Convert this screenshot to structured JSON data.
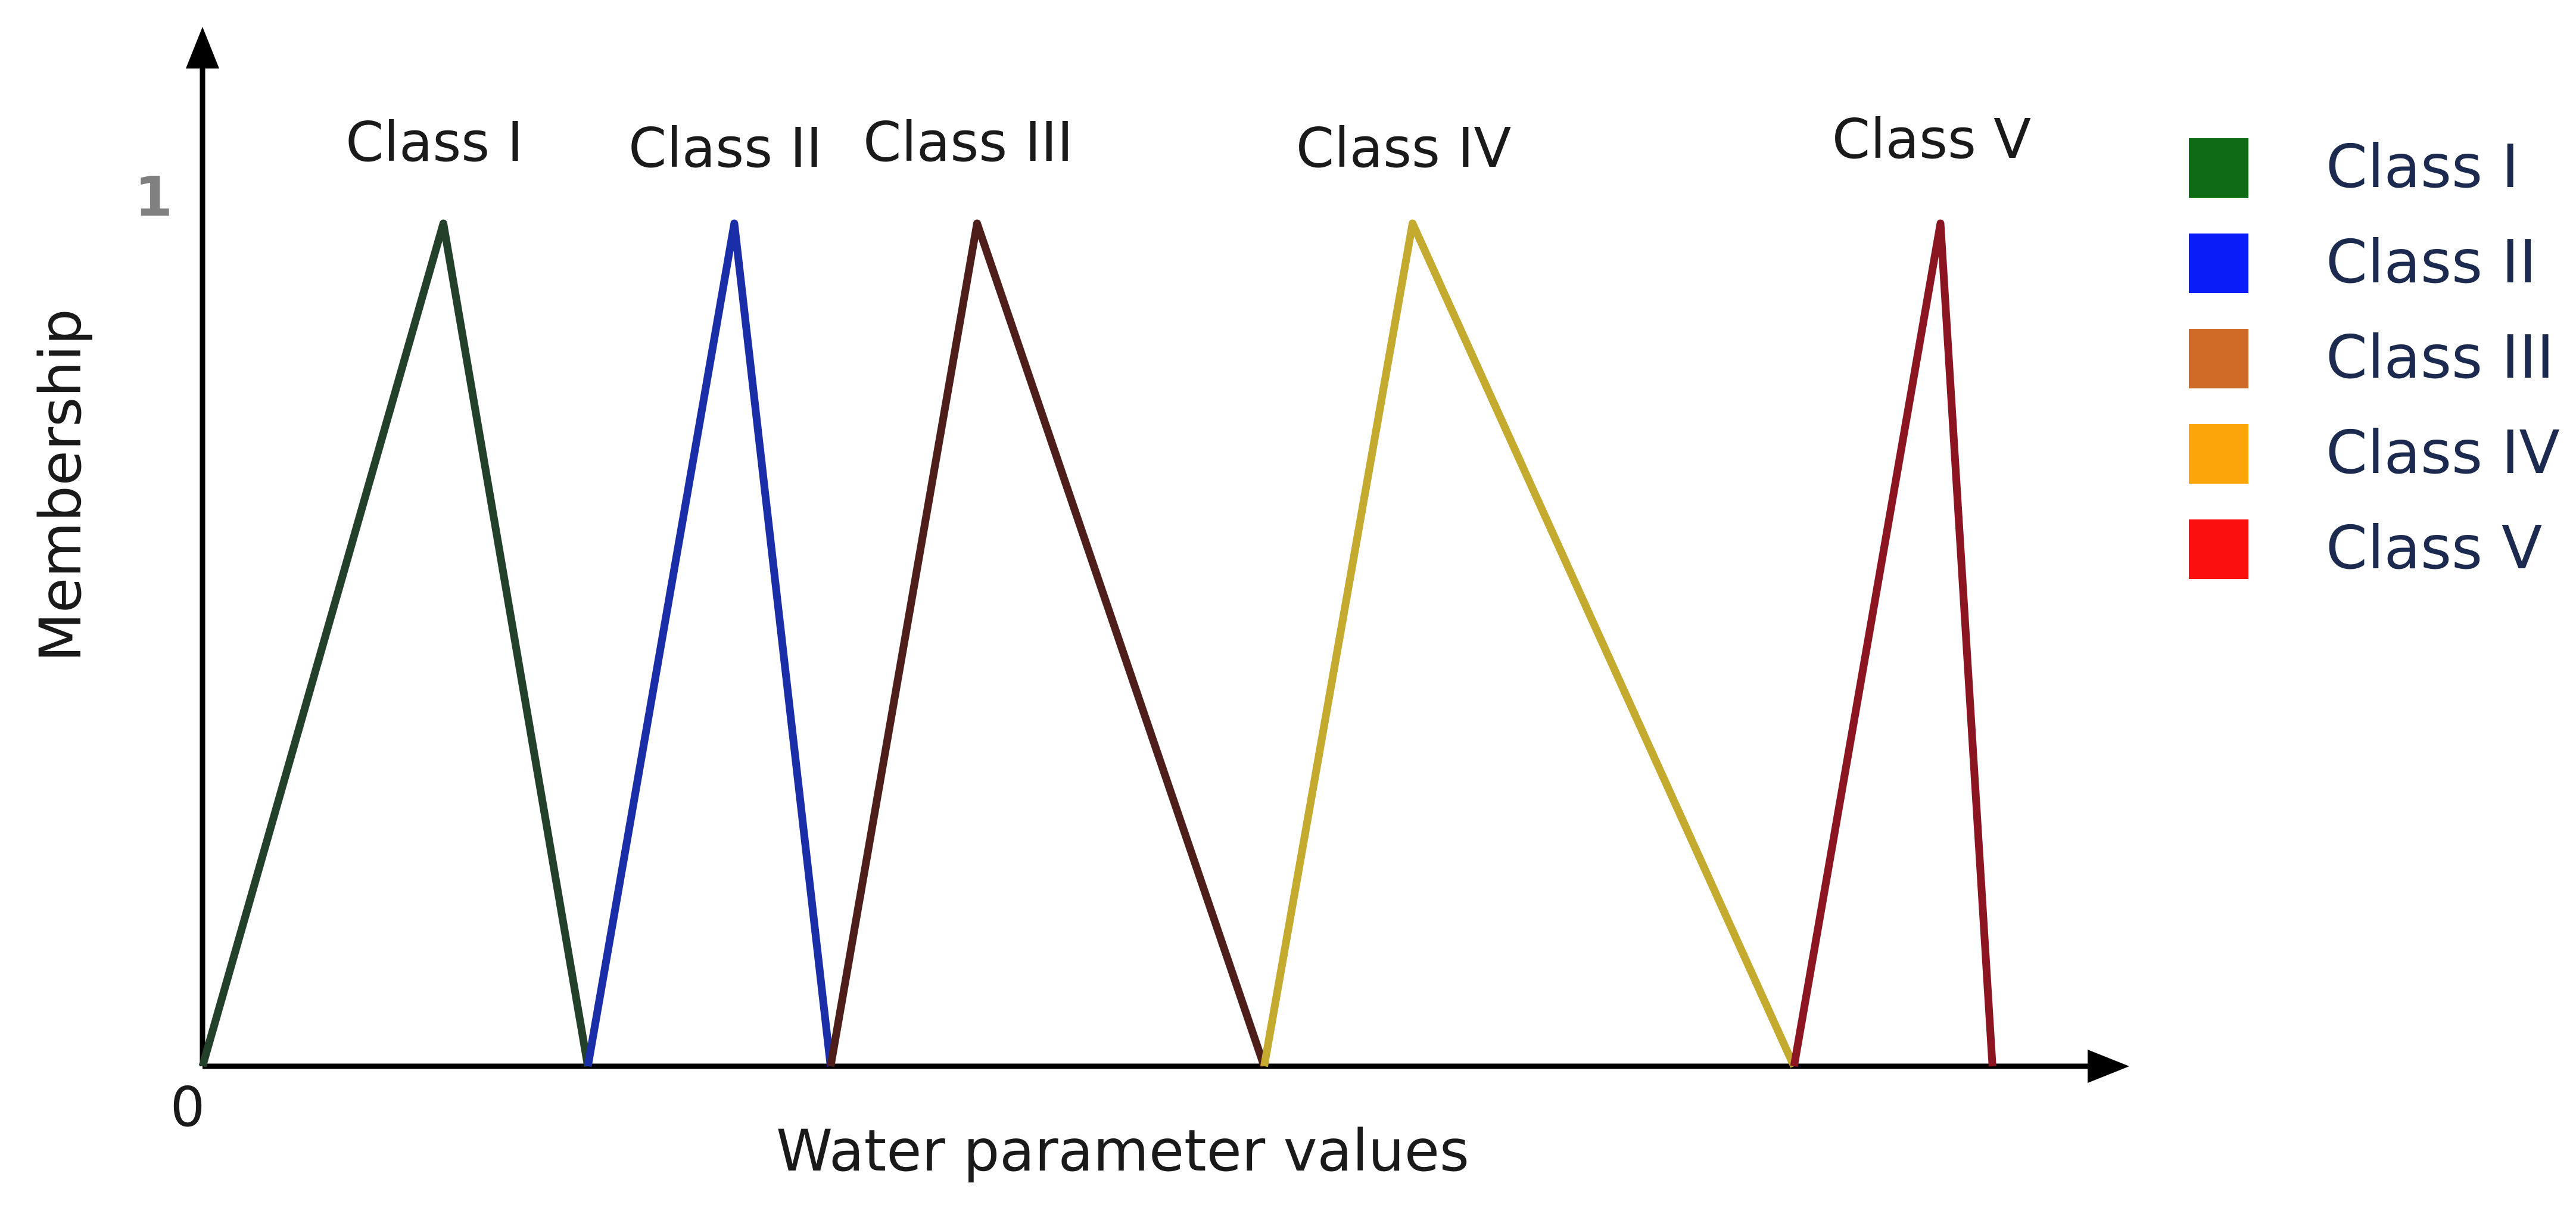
{
  "chart_data": {
    "type": "line",
    "xlabel": "Water parameter values",
    "ylabel": "Membership",
    "y_ticks": [
      "0",
      "1"
    ],
    "ylim": [
      0,
      1
    ],
    "xlim": [
      0,
      100
    ],
    "grid": false,
    "legend_position": "right",
    "series": [
      {
        "name": "Class I",
        "color": "#0f6b14",
        "line_color": "#23402a",
        "x": [
          0,
          12.5,
          20
        ],
        "y": [
          0,
          1,
          0
        ]
      },
      {
        "name": "Class II",
        "color": "#0a1cf7",
        "line_color": "#1a2ea8",
        "x": [
          20,
          27.6,
          32.6
        ],
        "y": [
          0,
          1,
          0
        ]
      },
      {
        "name": "Class III",
        "color": "#cf6b27",
        "line_color": "#4e1f1a",
        "x": [
          32.6,
          40.2,
          55.1
        ],
        "y": [
          0,
          1,
          0
        ]
      },
      {
        "name": "Class IV",
        "color": "#fca50a",
        "line_color": "#c4aa2e",
        "x": [
          55.1,
          62.8,
          82.6
        ],
        "y": [
          0,
          1,
          0
        ]
      },
      {
        "name": "Class V",
        "color": "#fb0f0f",
        "line_color": "#8b1622",
        "x": [
          82.6,
          90.2,
          92.9
        ],
        "y": [
          0,
          1,
          0
        ]
      }
    ]
  }
}
